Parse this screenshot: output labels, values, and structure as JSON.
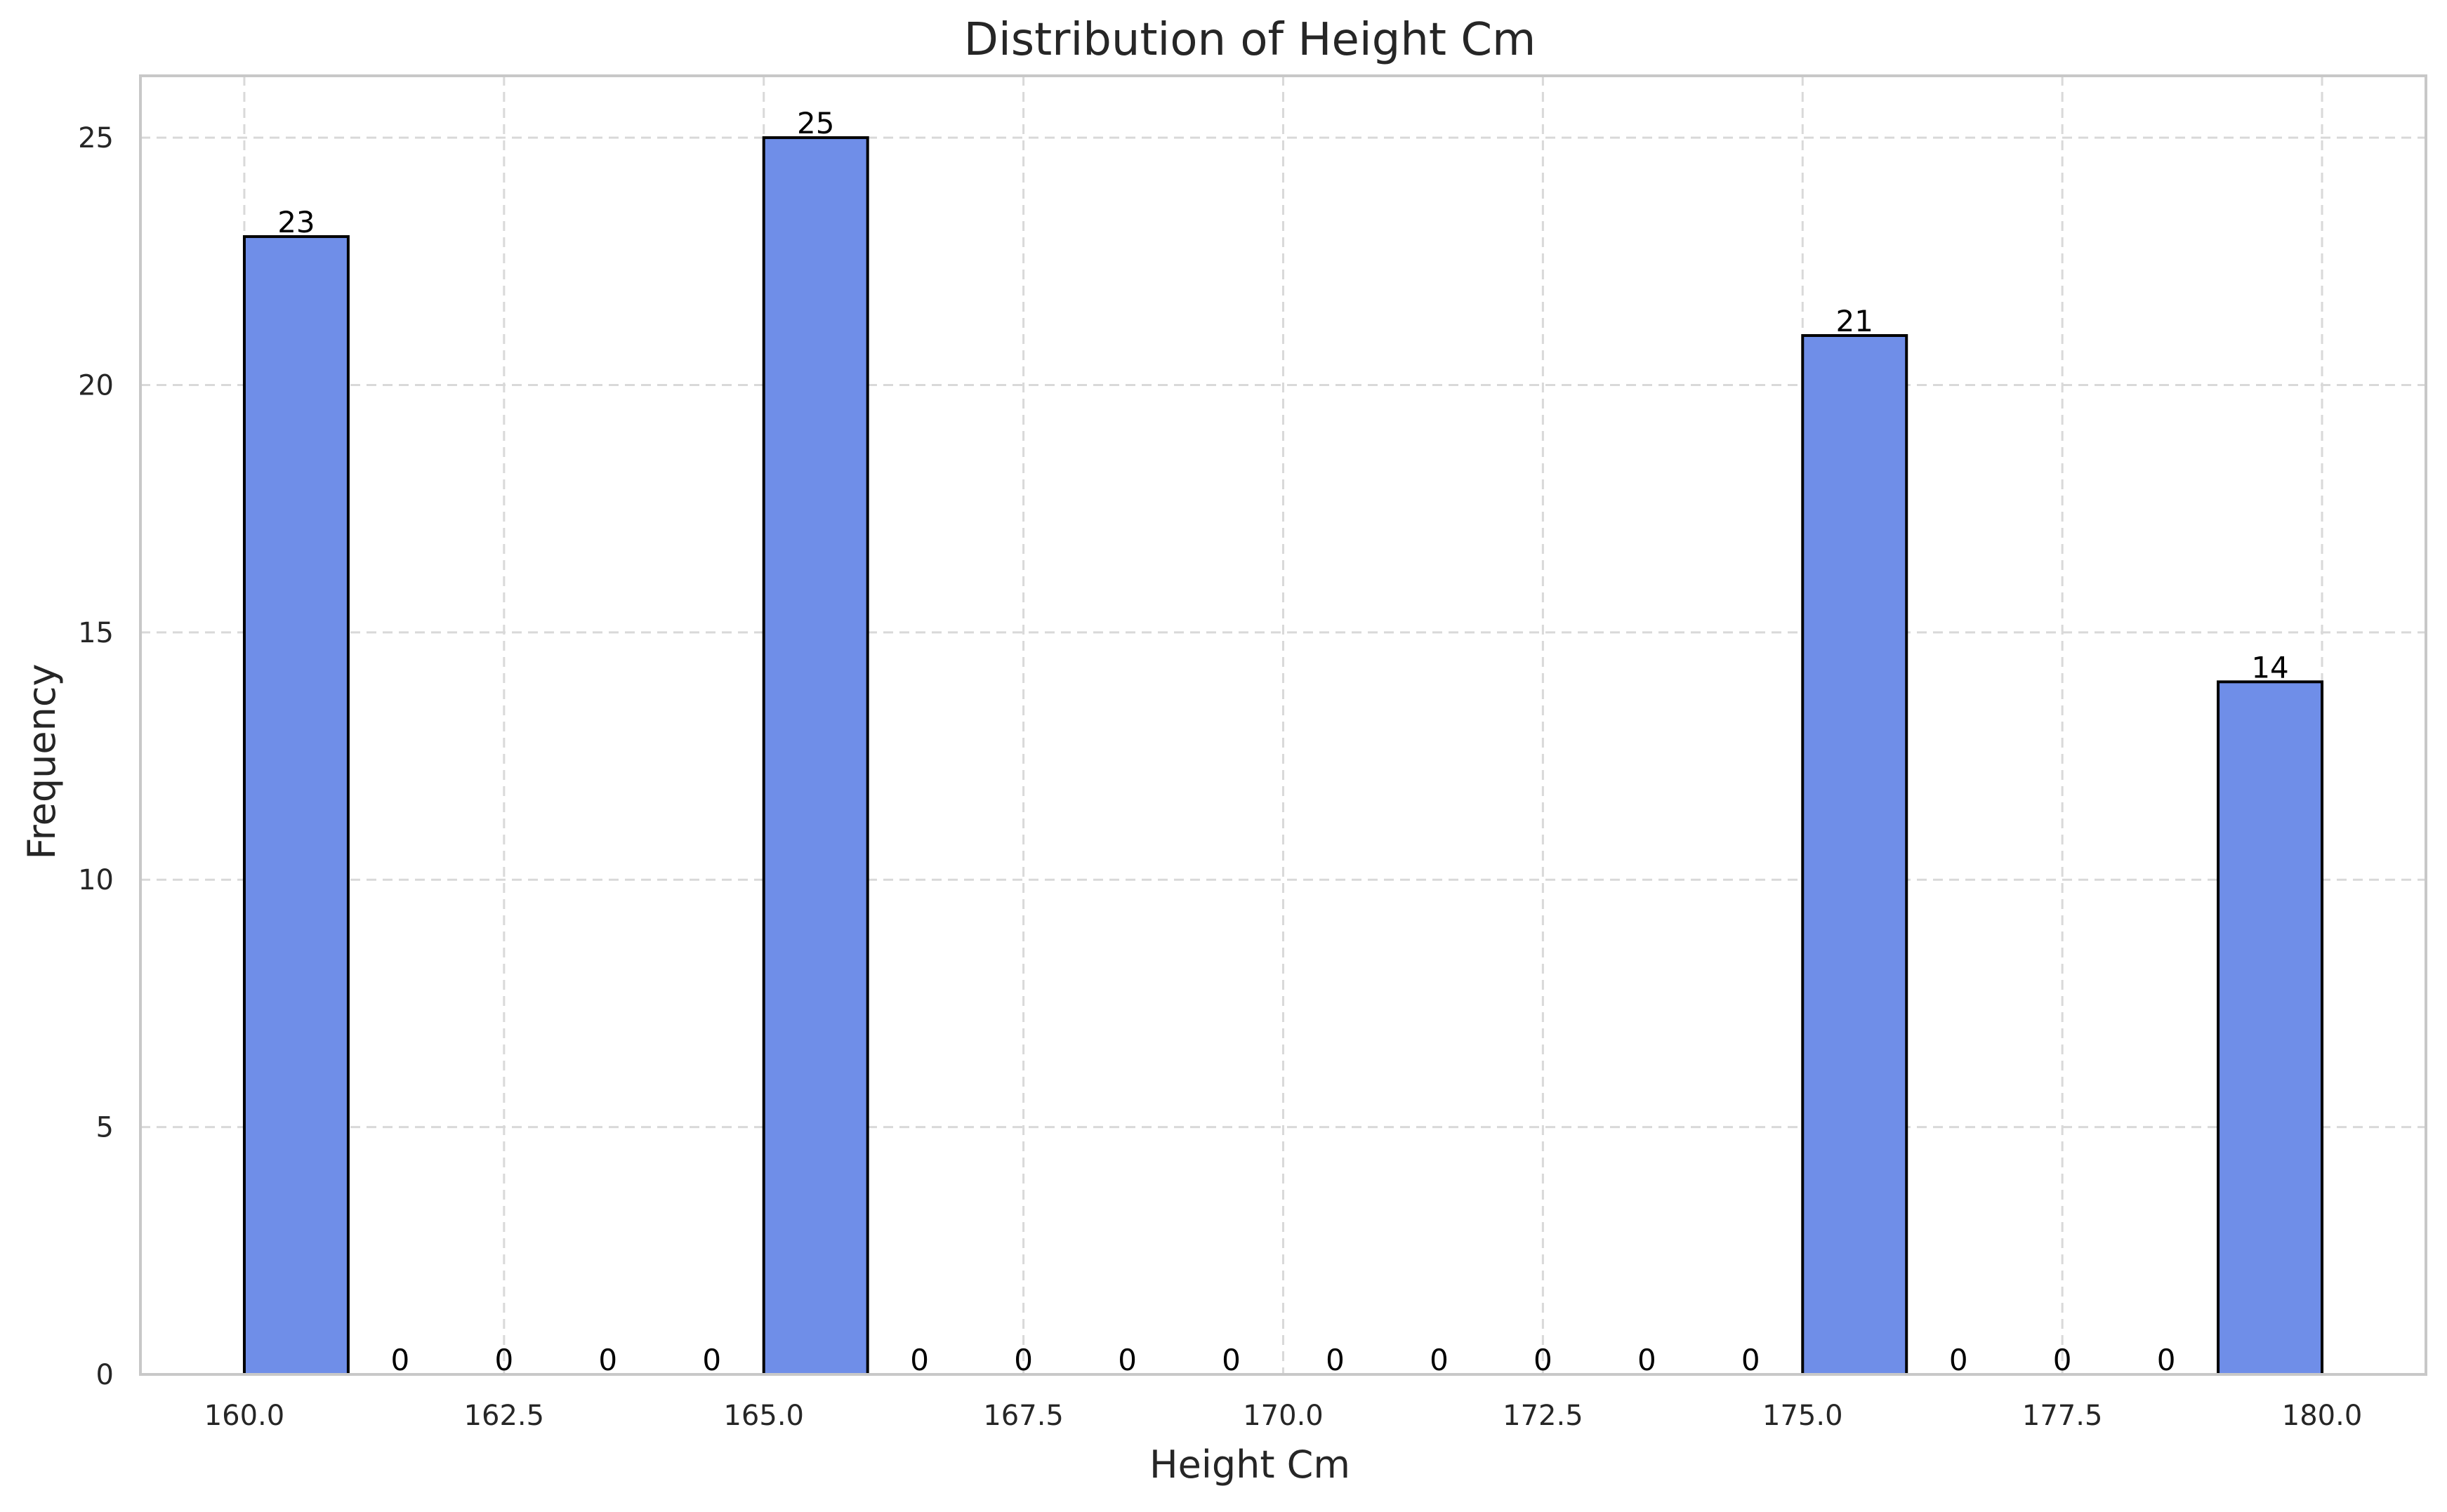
{
  "chart_data": {
    "type": "bar",
    "title": "Distribution of Height Cm",
    "xlabel": "Height Cm",
    "ylabel": "Frequency",
    "bin_edges": [
      160,
      161,
      162,
      163,
      164,
      165,
      166,
      167,
      168,
      169,
      170,
      171,
      172,
      173,
      174,
      175,
      176,
      177,
      178,
      179,
      180
    ],
    "values": [
      23,
      0,
      0,
      0,
      0,
      25,
      0,
      0,
      0,
      0,
      0,
      0,
      0,
      0,
      0,
      21,
      0,
      0,
      0,
      14
    ],
    "x_ticks": [
      "160.0",
      "162.5",
      "165.0",
      "167.5",
      "170.0",
      "172.5",
      "175.0",
      "177.5",
      "180.0"
    ],
    "y_ticks": [
      "0",
      "5",
      "10",
      "15",
      "20",
      "25"
    ],
    "xlim": [
      159,
      181
    ],
    "ylim": [
      0,
      26.25
    ],
    "grid": true,
    "bar_color": "#6f8ee8",
    "bar_edge_color": "#000000",
    "grid_color": "#d9d9d9"
  }
}
